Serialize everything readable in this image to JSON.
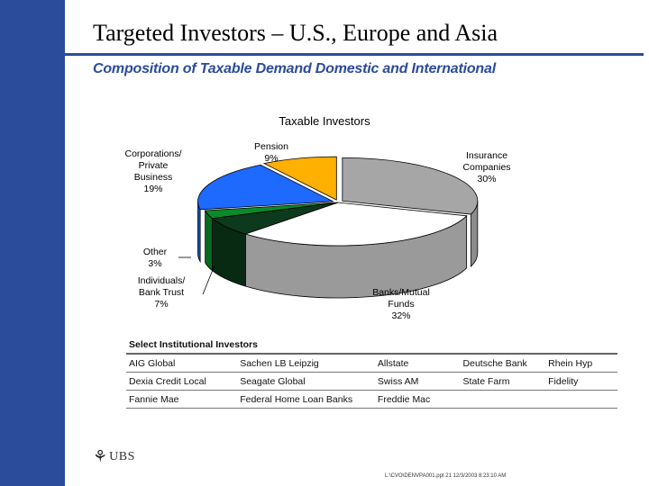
{
  "slide": {
    "title": "Targeted Investors – U.S., Europe and Asia",
    "subtitle": "Composition of Taxable Demand Domestic and International"
  },
  "chart_data": {
    "type": "pie",
    "title": "Taxable Investors",
    "style": "3d-exploded",
    "slices": [
      {
        "label_lines": [
          "Insurance",
          "Companies",
          "30%"
        ],
        "value": 30,
        "color": "#a6a6a6"
      },
      {
        "label_lines": [
          "Banks/Mutual",
          "Funds",
          "32%"
        ],
        "value": 32,
        "color": "#ffffff"
      },
      {
        "label_lines": [
          "Individuals/",
          "Bank Trust",
          "7%"
        ],
        "value": 7,
        "color": "#0d3a1c"
      },
      {
        "label_lines": [
          "Other",
          "3%"
        ],
        "value": 3,
        "color": "#0a8a2a"
      },
      {
        "label_lines": [
          "Corporations/",
          "Private",
          "Business",
          "19%"
        ],
        "value": 19,
        "color": "#1e6aff"
      },
      {
        "label_lines": [
          "Pension",
          "9%"
        ],
        "value": 9,
        "color": "#ffb000"
      }
    ]
  },
  "institutional": {
    "heading": "Select Institutional Investors",
    "rows": [
      [
        "AIG Global",
        "Sachen LB Leipzig",
        "Allstate",
        "Deutsche Bank",
        "Rhein Hyp"
      ],
      [
        "Dexia Credit Local",
        "Seagate Global",
        "Swiss AM",
        "State Farm",
        "Fidelity"
      ],
      [
        "Fannie Mae",
        "Federal Home Loan Banks",
        "Freddie Mac",
        "",
        ""
      ]
    ]
  },
  "branding": {
    "logo_text": "UBS",
    "logo_icon": "ubs-keys-icon"
  },
  "footer": {
    "text": "L:\\CVO\\DENVPA001.ppt 21 12/3/2003 8:23:10 AM"
  }
}
